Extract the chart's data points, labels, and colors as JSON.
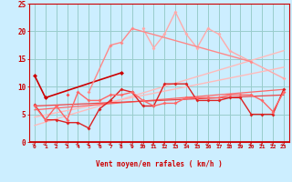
{
  "bg_color": "#cceeff",
  "grid_color": "#99cccc",
  "xlabel": "Vent moyen/en rafales ( km/h )",
  "xlim": [
    0,
    23
  ],
  "ylim": [
    0,
    25
  ],
  "yticks": [
    0,
    5,
    10,
    15,
    20,
    25
  ],
  "xticks": [
    0,
    1,
    2,
    3,
    4,
    5,
    6,
    7,
    8,
    9,
    10,
    11,
    12,
    13,
    14,
    15,
    16,
    17,
    18,
    19,
    20,
    21,
    22,
    23
  ],
  "series": [
    {
      "y": [
        6.7,
        4.0,
        4.0,
        3.5,
        3.5,
        2.5,
        6.0,
        7.5,
        9.5,
        9.0,
        6.5,
        6.5,
        10.5,
        10.5,
        10.5,
        7.5,
        7.5,
        7.5,
        8.0,
        8.0,
        5.0,
        5.0,
        5.0,
        9.5
      ],
      "color": "#dd2222",
      "lw": 1.0,
      "ms": 2.0
    },
    {
      "y": [
        6.5,
        4.0,
        6.5,
        4.0,
        9.0,
        7.5,
        7.5,
        8.5,
        8.5,
        9.0,
        7.5,
        6.5,
        7.0,
        7.0,
        8.0,
        8.0,
        8.0,
        8.0,
        8.5,
        8.5,
        8.5,
        7.5,
        5.5,
        9.0
      ],
      "color": "#ff6666",
      "lw": 1.0,
      "ms": 2.0
    },
    {
      "y": [
        12.0,
        8.0,
        null,
        null,
        null,
        null,
        null,
        null,
        12.5,
        null,
        null,
        null,
        null,
        null,
        null,
        null,
        null,
        null,
        null,
        null,
        null,
        null,
        null,
        null
      ],
      "color": "#cc0000",
      "lw": 1.2,
      "ms": 2.5
    },
    {
      "y": [
        null,
        null,
        null,
        null,
        null,
        null,
        null,
        null,
        null,
        null,
        20.5,
        17.0,
        19.5,
        23.5,
        19.5,
        17.0,
        20.5,
        19.5,
        16.5,
        null,
        null,
        null,
        null,
        11.5
      ],
      "color": "#ffaaaa",
      "lw": 1.0,
      "ms": 2.0
    },
    {
      "y": [
        null,
        null,
        null,
        null,
        null,
        9.0,
        null,
        17.5,
        18.0,
        20.5,
        null,
        null,
        null,
        null,
        null,
        null,
        null,
        null,
        null,
        null,
        14.5,
        null,
        null,
        null
      ],
      "color": "#ff8888",
      "lw": 1.0,
      "ms": 2.0
    },
    {
      "y": [
        null,
        null,
        null,
        8.5,
        null,
        null,
        null,
        null,
        null,
        null,
        null,
        null,
        null,
        null,
        null,
        null,
        null,
        null,
        null,
        null,
        null,
        null,
        null,
        null
      ],
      "color": "#ff4444",
      "lw": 1.0,
      "ms": 2.0
    }
  ],
  "trend_lines": [
    {
      "x0": 0,
      "y0": 3.0,
      "x1": 23,
      "y1": 16.5,
      "color": "#ffbbbb",
      "lw": 1.0
    },
    {
      "x0": 0,
      "y0": 4.5,
      "x1": 23,
      "y1": 13.5,
      "color": "#ffbbbb",
      "lw": 1.0
    },
    {
      "x0": 0,
      "y0": 5.8,
      "x1": 23,
      "y1": 9.5,
      "color": "#ff6666",
      "lw": 0.9
    },
    {
      "x0": 0,
      "y0": 6.5,
      "x1": 23,
      "y1": 8.5,
      "color": "#ee4444",
      "lw": 0.9
    }
  ],
  "arrow_color": "#cc0000",
  "tick_color": "#cc0000",
  "xlabel_color": "#cc0000",
  "spine_color": "#cc0000"
}
